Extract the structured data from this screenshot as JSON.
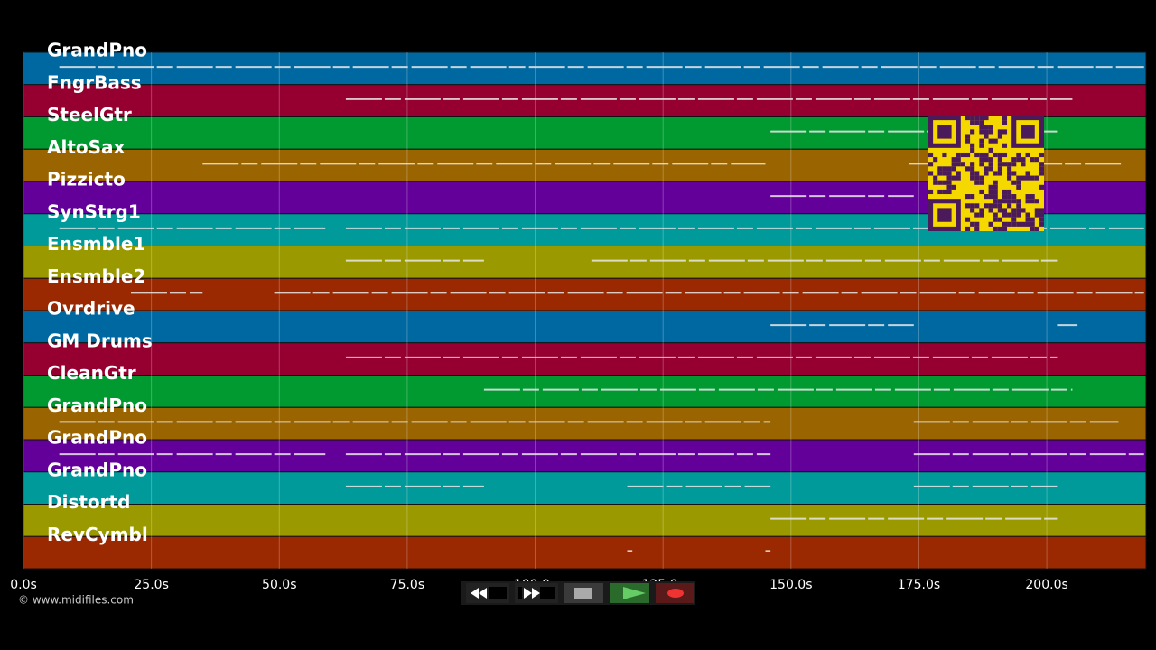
{
  "timeline": {
    "xlim": [
      0,
      219.4
    ],
    "ticks": [
      {
        "value": 0,
        "label": "0.0s"
      },
      {
        "value": 25,
        "label": "25.0s"
      },
      {
        "value": 50,
        "label": "50.0s"
      },
      {
        "value": 75,
        "label": "75.0s"
      },
      {
        "value": 100,
        "label": "100.0s"
      },
      {
        "value": 125,
        "label": "125.0s"
      },
      {
        "value": 150,
        "label": "150.0s"
      },
      {
        "value": 175,
        "label": "175.0s"
      },
      {
        "value": 200,
        "label": "200.0s"
      }
    ]
  },
  "tracks": [
    {
      "name": "GrandPno",
      "color": "#0068a0",
      "notes": [
        [
          7,
          219
        ]
      ]
    },
    {
      "name": "FngrBass",
      "color": "#960030",
      "notes": [
        [
          63,
          205
        ]
      ]
    },
    {
      "name": "SteelGtr",
      "color": "#009a30",
      "notes": [
        [
          146,
          202
        ]
      ]
    },
    {
      "name": "AltoSax",
      "color": "#9a6400",
      "notes": [
        [
          35,
          145
        ],
        [
          173,
          215
        ]
      ]
    },
    {
      "name": "Pizzicto",
      "color": "#64009a",
      "notes": [
        [
          146,
          174
        ]
      ]
    },
    {
      "name": "SynStrg1",
      "color": "#009a9a",
      "notes": [
        [
          7,
          59
        ],
        [
          63,
          219
        ]
      ]
    },
    {
      "name": "Ensmble1",
      "color": "#9a9a00",
      "notes": [
        [
          63,
          90
        ],
        [
          111,
          202
        ]
      ]
    },
    {
      "name": "Ensmble2",
      "color": "#9a2800",
      "notes": [
        [
          21,
          35
        ],
        [
          49,
          219
        ]
      ]
    },
    {
      "name": "Ovrdrive",
      "color": "#0068a0",
      "notes": [
        [
          146,
          174
        ],
        [
          202,
          206
        ]
      ]
    },
    {
      "name": "GM Drums",
      "color": "#960030",
      "notes": [
        [
          63,
          202
        ]
      ]
    },
    {
      "name": "CleanGtr",
      "color": "#009a30",
      "notes": [
        [
          90,
          205
        ]
      ]
    },
    {
      "name": "GrandPno",
      "color": "#9a6400",
      "notes": [
        [
          7,
          146
        ],
        [
          174,
          214
        ]
      ]
    },
    {
      "name": "GrandPno",
      "color": "#64009a",
      "notes": [
        [
          7,
          59
        ],
        [
          63,
          146
        ],
        [
          174,
          219
        ]
      ]
    },
    {
      "name": "GrandPno",
      "color": "#009a9a",
      "notes": [
        [
          63,
          90
        ],
        [
          118,
          146
        ],
        [
          174,
          202
        ]
      ]
    },
    {
      "name": "Distortd",
      "color": "#9a9a00",
      "notes": [
        [
          146,
          202
        ]
      ]
    },
    {
      "name": "RevCymbl",
      "color": "#9a2800",
      "notes": [
        [
          118,
          119
        ],
        [
          145,
          146
        ]
      ]
    }
  ],
  "footer": {
    "credit": "© www.midifiles.com"
  }
}
